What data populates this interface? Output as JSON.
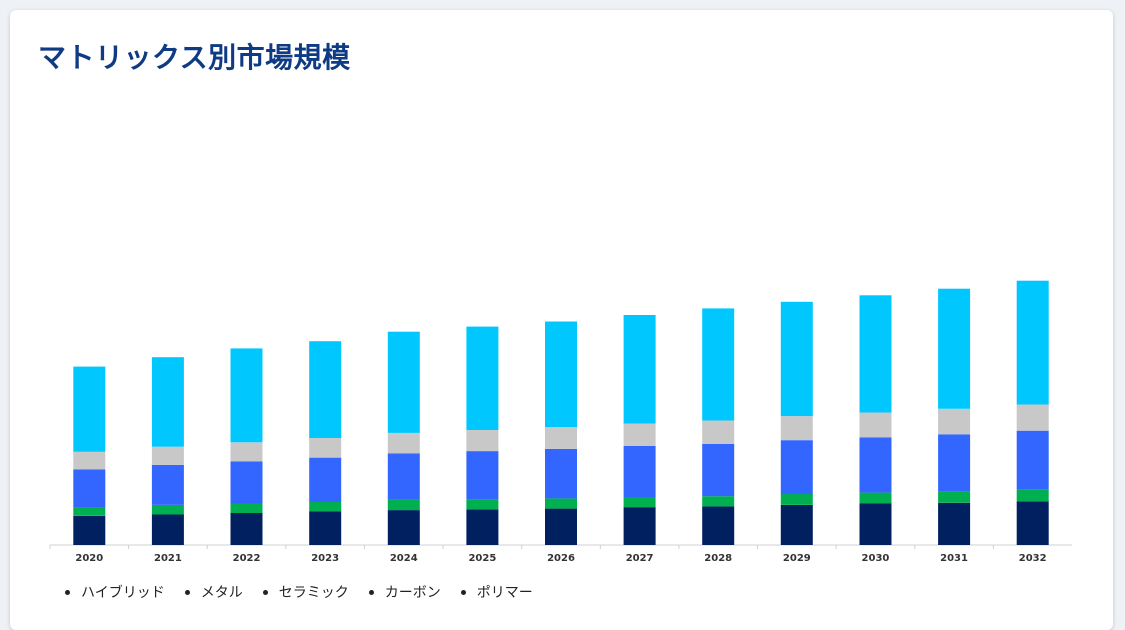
{
  "title": "マトリックス別市場規模",
  "chart_data": {
    "type": "bar",
    "stacked": true,
    "categories": [
      "2020",
      "2021",
      "2022",
      "2023",
      "2024",
      "2025",
      "2026",
      "2027",
      "2028",
      "2029",
      "2030",
      "2031",
      "2032"
    ],
    "series": [
      {
        "name": "ハイブリッド",
        "color": "#00c8ff",
        "values": [
          117,
          123,
          129,
          133,
          139,
          142,
          145,
          149,
          154,
          157,
          161,
          165,
          170
        ]
      },
      {
        "name": "メタル",
        "color": "#c8c8c8",
        "values": [
          24,
          25,
          26,
          27,
          28,
          29,
          30,
          31,
          32,
          33,
          34,
          35,
          36
        ]
      },
      {
        "name": "セラミック",
        "color": "#3366ff",
        "values": [
          52,
          55,
          58,
          61,
          64,
          66,
          68,
          70,
          72,
          74,
          76,
          78,
          81
        ]
      },
      {
        "name": "カーボン",
        "color": "#00b050",
        "values": [
          12,
          13,
          13,
          13,
          14,
          14,
          14,
          14,
          14,
          15,
          15,
          16,
          16
        ]
      },
      {
        "name": "ポリマー",
        "color": "#002060",
        "values": [
          40,
          42,
          44,
          46,
          48,
          49,
          50,
          52,
          53,
          55,
          57,
          58,
          60
        ]
      }
    ],
    "stack_order_bottom_to_top": [
      "ポリマー",
      "カーボン",
      "セラミック",
      "メタル",
      "ハイブリッド"
    ],
    "legend_position": "bottom-left",
    "y_axis_visible": false,
    "grid": false
  }
}
